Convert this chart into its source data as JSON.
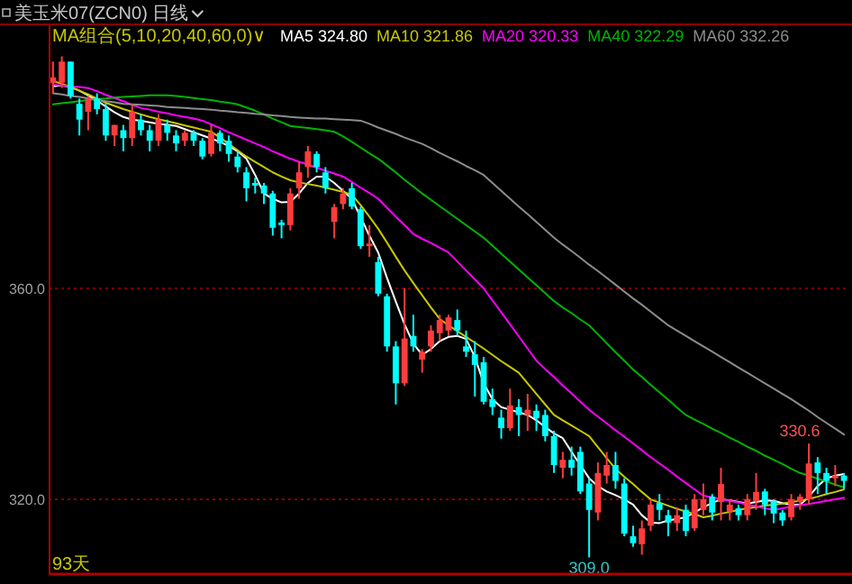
{
  "chart_data": {
    "type": "candlestick",
    "title": "美玉米07(ZCN0) 日线",
    "categories": [
      null,
      null,
      null,
      null,
      null,
      null,
      null,
      null,
      null,
      null,
      null,
      null,
      null,
      null,
      null,
      null,
      null,
      null,
      null,
      null,
      null,
      null,
      null,
      null,
      null,
      null,
      null,
      null,
      null,
      null,
      null,
      null,
      null,
      null,
      null,
      null,
      null,
      null,
      null,
      null,
      null,
      null,
      null,
      null,
      null,
      null,
      null,
      null,
      null,
      null,
      null,
      null,
      null,
      null,
      null,
      null,
      null,
      null,
      null,
      null,
      null,
      null,
      null,
      null,
      null,
      null,
      null,
      null,
      null,
      null,
      null,
      null,
      null,
      null,
      null,
      null,
      null,
      null,
      null,
      null,
      null,
      null,
      null,
      null,
      null,
      null,
      null,
      null,
      null,
      null,
      null
    ],
    "ohlc": [
      [
        399,
        403,
        397,
        400
      ],
      [
        399,
        404,
        398,
        403
      ],
      [
        403,
        403,
        396,
        396.5
      ],
      [
        395,
        396,
        389,
        392
      ],
      [
        393.5,
        396.5,
        390,
        396
      ],
      [
        396,
        397,
        393,
        394
      ],
      [
        394,
        395,
        388,
        389
      ],
      [
        389,
        391,
        387,
        391
      ],
      [
        390,
        391,
        386,
        388.5
      ],
      [
        388.5,
        395,
        387,
        393.5
      ],
      [
        392,
        393,
        389,
        390
      ],
      [
        390,
        391,
        386,
        388
      ],
      [
        388,
        393,
        387,
        392
      ],
      [
        391,
        392,
        388,
        389.5
      ],
      [
        389,
        390,
        386,
        387.5
      ],
      [
        388,
        390,
        387,
        389.5
      ],
      [
        389.5,
        390,
        387,
        388
      ],
      [
        388,
        388.5,
        384.5,
        385
      ],
      [
        385.5,
        391,
        385,
        389.5
      ],
      [
        389.5,
        390,
        386,
        387.5
      ],
      [
        388,
        389,
        384,
        385.5
      ],
      [
        385,
        386,
        382,
        383
      ],
      [
        382,
        383,
        376.5,
        379
      ],
      [
        380,
        381,
        378,
        379.5
      ],
      [
        379.5,
        380,
        376,
        378
      ],
      [
        378,
        378.5,
        370,
        371.5
      ],
      [
        372.5,
        373,
        369.5,
        372
      ],
      [
        372,
        379,
        371,
        378
      ],
      [
        379,
        384,
        377,
        382
      ],
      [
        383,
        387,
        381,
        386
      ],
      [
        385.5,
        386,
        382,
        383
      ],
      [
        382,
        383,
        378,
        379
      ],
      [
        372.6,
        376,
        369.5,
        375.4
      ],
      [
        376,
        379,
        375,
        378
      ],
      [
        379,
        380,
        375,
        375.5
      ],
      [
        375,
        375.5,
        367.5,
        368
      ],
      [
        368,
        372,
        366,
        368.5
      ],
      [
        365,
        366,
        358.5,
        359
      ],
      [
        358.5,
        359,
        348,
        349
      ],
      [
        349,
        350,
        338,
        342
      ],
      [
        342,
        360,
        341.5,
        350.5
      ],
      [
        351,
        355,
        348,
        349
      ],
      [
        346.5,
        348.5,
        344,
        348
      ],
      [
        349,
        353,
        348,
        352
      ],
      [
        351.5,
        355,
        350,
        354
      ],
      [
        352,
        355,
        351,
        354.5
      ],
      [
        354,
        356,
        351,
        352
      ],
      [
        349,
        352,
        347,
        348
      ],
      [
        347.5,
        350,
        339.5,
        345.5
      ],
      [
        346,
        347,
        338,
        338.5
      ],
      [
        339,
        341,
        336,
        337.5
      ],
      [
        335.5,
        337,
        331.5,
        333.5
      ],
      [
        333.5,
        341,
        333,
        337.8
      ],
      [
        337.5,
        339,
        332,
        336
      ],
      [
        336,
        340,
        333,
        337
      ],
      [
        336.8,
        338,
        333,
        335.4
      ],
      [
        336,
        337,
        331,
        332
      ],
      [
        332,
        333,
        325,
        326.5
      ],
      [
        326,
        329,
        324,
        327.5
      ],
      [
        327.5,
        330,
        324.5,
        326
      ],
      [
        329,
        330,
        321,
        321.5
      ],
      [
        323,
        324,
        309,
        318
      ],
      [
        317.5,
        327,
        316,
        325
      ],
      [
        324.5,
        329,
        323,
        326.5
      ],
      [
        326.5,
        329,
        322,
        323.5
      ],
      [
        323,
        324,
        313,
        313.5
      ],
      [
        313,
        315,
        311,
        311.7
      ],
      [
        311.5,
        316,
        309.5,
        314.5
      ],
      [
        315,
        320,
        314,
        319
      ],
      [
        319.3,
        321,
        316,
        318
      ],
      [
        317,
        318,
        313,
        315.6
      ],
      [
        315.5,
        318.5,
        314,
        317
      ],
      [
        318,
        319,
        313,
        314
      ],
      [
        314.5,
        321,
        314,
        320
      ],
      [
        318,
        323,
        317,
        320
      ],
      [
        320.5,
        321,
        316,
        317.5
      ],
      [
        319.5,
        326,
        316,
        322.9
      ],
      [
        317.6,
        320,
        316,
        319
      ],
      [
        318.3,
        319,
        316,
        317
      ],
      [
        317,
        321,
        316,
        320
      ],
      [
        319.7,
        325,
        318,
        321.4
      ],
      [
        321.5,
        322,
        317,
        319
      ],
      [
        319.7,
        320,
        315.5,
        317.3
      ],
      [
        317.5,
        318,
        315,
        316
      ],
      [
        316.6,
        321,
        316,
        320
      ],
      [
        319.5,
        321,
        318,
        320.5
      ],
      [
        320,
        330.6,
        319,
        326.8
      ],
      [
        327,
        328,
        321,
        325
      ],
      [
        325,
        326,
        321,
        323.5
      ],
      [
        324,
        326.5,
        322.5,
        324.5
      ],
      [
        324.5,
        325,
        322,
        323.5
      ]
    ],
    "colors": [
      "#ff3c3c",
      "#ff3c3c",
      "#00ffff",
      "#00ffff",
      "#ff3c3c",
      "#00ffff",
      "#00ffff",
      "#ff3c3c",
      "#00ffff",
      "#ff3c3c",
      "#00ffff",
      "#00ffff",
      "#ff3c3c",
      "#00ffff",
      "#00ffff",
      "#ff3c3c",
      "#00ffff",
      "#00ffff",
      "#ff3c3c",
      "#00ffff",
      "#00ffff",
      "#00ffff",
      "#00ffff",
      "#00ffff",
      "#00ffff",
      "#00ffff",
      "#00ffff",
      "#ff3c3c",
      "#ff3c3c",
      "#ff3c3c",
      "#00ffff",
      "#00ffff",
      "#ff3c3c",
      "#ff3c3c",
      "#00ffff",
      "#00ffff",
      "#ff3c3c",
      "#00ffff",
      "#00ffff",
      "#00ffff",
      "#ff3c3c",
      "#00ffff",
      "#ff3c3c",
      "#ff3c3c",
      "#ff3c3c",
      "#ff3c3c",
      "#00ffff",
      "#00ffff",
      "#00ffff",
      "#00ffff",
      "#00ffff",
      "#00ffff",
      "#ff3c3c",
      "#00ffff",
      "#ff3c3c",
      "#00ffff",
      "#00ffff",
      "#00ffff",
      "#ff3c3c",
      "#00ffff",
      "#00ffff",
      "#00ffff",
      "#ff3c3c",
      "#ff3c3c",
      "#00ffff",
      "#00ffff",
      "#00ffff",
      "#ff3c3c",
      "#ff3c3c",
      "#00ffff",
      "#00ffff",
      "#ff3c3c",
      "#00ffff",
      "#ff3c3c",
      "#ff3c3c",
      "#00ffff",
      "#ff3c3c",
      "#ff3c3c",
      "#00ffff",
      "#ff3c3c",
      "#ff3c3c",
      "#00ffff",
      "#00ffff",
      "#00ffff",
      "#ff3c3c",
      "#ff3c3c",
      "#ff3c3c",
      "#00ffff",
      "#00ffff",
      "#ff3c3c",
      "#00ffff"
    ],
    "series": [
      {
        "type": "line",
        "name": "MA5 324.80",
        "color": "#ffffff",
        "values": [
          398.3,
          398.5,
          398.2,
          397.5,
          396.6,
          395.6,
          394.5,
          393.4,
          392.5,
          392,
          391.8,
          391.5,
          391.2,
          391,
          390.8,
          390.2,
          389.6,
          389,
          388.4,
          387.8,
          387,
          386,
          384.6,
          381.5,
          378,
          377,
          376.3,
          376.4,
          378,
          380,
          381.2,
          381.2,
          380,
          378.5,
          377,
          373.5,
          370,
          366.8,
          362,
          357.5,
          353.2,
          349.5,
          347.4,
          348.5,
          350,
          350.8,
          351,
          350.4,
          347,
          342,
          339,
          337.5,
          337,
          336.5,
          336,
          335,
          333.7,
          332.5,
          331.6,
          329,
          326.5,
          324,
          322.5,
          321.5,
          320.8,
          320,
          319,
          317,
          315.6,
          315.5,
          316,
          316.3,
          316.6,
          317.5,
          318.5,
          319.3,
          320,
          319.8,
          319.5,
          319.2,
          319.5,
          319.8,
          319.7,
          319.3,
          319,
          319,
          320.5,
          322.5,
          324,
          324.5,
          324.8
        ]
      },
      {
        "type": "line",
        "name": "MA10 321.86",
        "color": "#c8c800",
        "values": [
          399.3,
          398.8,
          398.2,
          397.5,
          396.8,
          396,
          395.2,
          394.6,
          394,
          393.5,
          393,
          392.5,
          392.1,
          391.7,
          391.3,
          390.9,
          390.5,
          390.1,
          389.7,
          388.6,
          387.4,
          386.2,
          385,
          384,
          383,
          382,
          381.2,
          380.5,
          380.1,
          379.8,
          379.5,
          379.1,
          378.7,
          378.3,
          377.8,
          375.8,
          373.6,
          371.3,
          368.7,
          366,
          363.4,
          361,
          358.7,
          356.4,
          354.2,
          353,
          351.9,
          350.8,
          349.7,
          348.6,
          347.4,
          346.2,
          345.1,
          344,
          342,
          340,
          338,
          336,
          335,
          334,
          333,
          332,
          329.9,
          327.8,
          325.8,
          324.3,
          322.9,
          321.4,
          320,
          319.4,
          318.8,
          318.2,
          317.7,
          317.2,
          316.6,
          316.9,
          317.3,
          317.6,
          318,
          318.3,
          318.5,
          318.8,
          319,
          319.2,
          319.5,
          319.7,
          320.1,
          320.5,
          321,
          321.4,
          321.9
        ]
      },
      {
        "type": "line",
        "name": "MA20 320.33",
        "color": "#ff00ff",
        "values": [
          398.6,
          398.5,
          398.3,
          398.2,
          398,
          397.4,
          396.7,
          396.1,
          395.5,
          394.8,
          394.2,
          393.9,
          393.5,
          393.2,
          392.8,
          392.5,
          392.2,
          391.8,
          391.1,
          390.4,
          389.6,
          388.9,
          388.2,
          387.5,
          386.8,
          386,
          385.3,
          384.6,
          384,
          383.5,
          382.9,
          382.3,
          381.8,
          381.2,
          380.2,
          379.1,
          378.1,
          377,
          375.3,
          373.6,
          372,
          370.3,
          369.4,
          368.6,
          367.7,
          366.8,
          365.1,
          363.4,
          361.7,
          360,
          357.7,
          355.5,
          353.2,
          350.9,
          348.6,
          346.3,
          344.7,
          343.2,
          341.6,
          340.1,
          338.5,
          337,
          335.7,
          334.4,
          333.1,
          331.9,
          330.6,
          329.3,
          328,
          326.8,
          325.6,
          324.3,
          323.1,
          321.9,
          320.7,
          320.4,
          320,
          319.7,
          319.4,
          319,
          318.7,
          318.3,
          318,
          318.3,
          318.6,
          318.9,
          319.1,
          319.4,
          319.7,
          320,
          320.3
        ]
      },
      {
        "type": "line",
        "name": "MA40 322.29",
        "color": "#00b400",
        "values": [
          394.9,
          395.1,
          395.3,
          395.5,
          395.7,
          395.9,
          396,
          396.2,
          396.3,
          396.4,
          396.5,
          396.6,
          396.6,
          396.6,
          396.5,
          396.3,
          396.1,
          395.9,
          395.7,
          395.4,
          395.2,
          394.9,
          394.3,
          393.7,
          393,
          392.2,
          391.5,
          390.8,
          390.6,
          390.4,
          390.2,
          390,
          389.7,
          388.8,
          387.8,
          386.7,
          385.6,
          384.6,
          383.3,
          382,
          380.6,
          379.3,
          378,
          376.8,
          375.6,
          374.4,
          373.2,
          372,
          370.8,
          369.6,
          368.1,
          366.6,
          365.1,
          363.6,
          362.1,
          360.6,
          359.1,
          357.6,
          356.4,
          355.3,
          354.1,
          353,
          351.3,
          349.6,
          347.9,
          346.3,
          344.6,
          343.2,
          341.7,
          340.3,
          338.9,
          337.4,
          336,
          335.1,
          334.3,
          333.4,
          332.6,
          331.7,
          330.9,
          330,
          329.2,
          328.3,
          327.5,
          326.7,
          325.8,
          325,
          324.5,
          323.9,
          323.4,
          322.8,
          322.3
        ]
      },
      {
        "type": "line",
        "name": "MA60 332.26",
        "color": "#8c8c8c",
        "values": [
          397,
          396.8,
          396.5,
          396.3,
          396,
          395.8,
          395.5,
          395.3,
          395,
          394.9,
          394.8,
          394.7,
          394.6,
          394.4,
          394.3,
          394.2,
          394.1,
          394,
          393.9,
          393.7,
          393.6,
          393.4,
          393.3,
          393.1,
          393,
          392.8,
          392.7,
          392.5,
          392.4,
          392.3,
          392.2,
          392.2,
          392.1,
          392,
          391.9,
          391.8,
          391.2,
          390.5,
          389.9,
          389.3,
          388.6,
          388,
          387.4,
          386.6,
          385.7,
          384.9,
          384.1,
          383.2,
          382.4,
          381.5,
          380,
          378.5,
          377,
          375.5,
          374.1,
          372.6,
          371.1,
          369.6,
          368.3,
          367.1,
          365.8,
          364.5,
          363.3,
          362,
          360.7,
          359.4,
          358.1,
          356.9,
          355.6,
          354.3,
          353,
          352,
          351,
          350,
          349,
          348,
          347,
          346,
          345,
          344,
          343,
          342,
          341,
          340,
          339,
          337.9,
          336.8,
          335.6,
          334.5,
          333.4,
          332.3
        ]
      }
    ],
    "ylim": [
      306,
      409.9
    ],
    "yticks": [
      {
        "value": 360,
        "label": "360.0"
      },
      {
        "value": 320,
        "label": "320.0"
      }
    ],
    "grid": "y",
    "legend": "top",
    "annotations": [
      "MA组合(5,10,20,40,60,0)∨",
      "93天",
      "330.6",
      "309.0"
    ]
  }
}
